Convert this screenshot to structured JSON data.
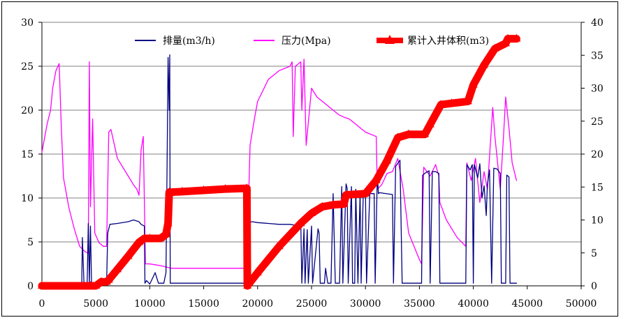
{
  "chart_data": {
    "type": "line",
    "x_axis": {
      "min": 0,
      "max": 50000,
      "ticks": [
        0,
        5000,
        10000,
        15000,
        20000,
        25000,
        30000,
        35000,
        40000,
        45000,
        50000
      ]
    },
    "y_left": {
      "min": 0,
      "max": 30,
      "ticks": [
        0,
        5,
        10,
        15,
        20,
        25,
        30
      ]
    },
    "y_right": {
      "min": 0,
      "max": 40,
      "ticks": [
        0,
        5,
        10,
        15,
        20,
        25,
        30,
        35,
        40
      ]
    },
    "grid": "horizontal",
    "legend_position": "top",
    "series": [
      {
        "name": "排量(m3/h)",
        "axis": "left",
        "color": "#000080",
        "style": "line",
        "points": [
          [
            0,
            0.3
          ],
          [
            3700,
            0.3
          ],
          [
            3750,
            5.5
          ],
          [
            3900,
            0.3
          ],
          [
            4200,
            0.3
          ],
          [
            4300,
            7.1
          ],
          [
            4400,
            0.3
          ],
          [
            4500,
            6.8
          ],
          [
            4600,
            0.3
          ],
          [
            6000,
            0.3
          ],
          [
            6100,
            6.0
          ],
          [
            6300,
            7.0
          ],
          [
            7000,
            7.1
          ],
          [
            8000,
            7.3
          ],
          [
            8500,
            7.5
          ],
          [
            9000,
            7.3
          ],
          [
            9200,
            7.0
          ],
          [
            9500,
            6.8
          ],
          [
            9550,
            0.3
          ],
          [
            9700,
            0.6
          ],
          [
            10000,
            0.2
          ],
          [
            10500,
            1.5
          ],
          [
            10800,
            0.3
          ],
          [
            11300,
            0.3
          ],
          [
            11500,
            1.5
          ],
          [
            11600,
            13
          ],
          [
            11700,
            26
          ],
          [
            11800,
            20
          ],
          [
            11850,
            26.3
          ],
          [
            11900,
            0.3
          ],
          [
            19000,
            0.3
          ],
          [
            19100,
            7.2
          ],
          [
            19500,
            7.3
          ],
          [
            20000,
            7.2
          ],
          [
            21000,
            7.1
          ],
          [
            22000,
            7.0
          ],
          [
            23000,
            7.0
          ],
          [
            23500,
            6.9
          ],
          [
            24000,
            7.2
          ],
          [
            24100,
            0.3
          ],
          [
            24300,
            6.5
          ],
          [
            24400,
            0.3
          ],
          [
            24600,
            6.4
          ],
          [
            24700,
            0.3
          ],
          [
            25000,
            6.8
          ],
          [
            25100,
            0.3
          ],
          [
            25600,
            6.5
          ],
          [
            25700,
            6.0
          ],
          [
            25800,
            0.3
          ],
          [
            26200,
            0.3
          ],
          [
            26300,
            2.0
          ],
          [
            26500,
            0.3
          ],
          [
            26800,
            0.3
          ],
          [
            27000,
            10.5
          ],
          [
            27200,
            0.3
          ],
          [
            27600,
            0.3
          ],
          [
            27800,
            11.3
          ],
          [
            27900,
            0.3
          ],
          [
            28200,
            11.6
          ],
          [
            28300,
            11.1
          ],
          [
            28400,
            0.3
          ],
          [
            28700,
            11.3
          ],
          [
            28800,
            0.3
          ],
          [
            29000,
            0.3
          ],
          [
            29100,
            11.0
          ],
          [
            29300,
            0.3
          ],
          [
            29500,
            10.6
          ],
          [
            29600,
            0.3
          ],
          [
            29800,
            10.8
          ],
          [
            30000,
            10.6
          ],
          [
            30100,
            0.3
          ],
          [
            30400,
            10.5
          ],
          [
            30800,
            10.5
          ],
          [
            30900,
            0.3
          ],
          [
            31100,
            12.9
          ],
          [
            31200,
            10.5
          ],
          [
            31300,
            10.6
          ],
          [
            32500,
            10.4
          ],
          [
            32600,
            0.3
          ],
          [
            32800,
            13.6
          ],
          [
            33200,
            14.3
          ],
          [
            33400,
            0.3
          ],
          [
            35200,
            0.3
          ],
          [
            35300,
            12.6
          ],
          [
            35600,
            12.9
          ],
          [
            35900,
            13.1
          ],
          [
            36000,
            0.3
          ],
          [
            36200,
            13.0
          ],
          [
            36500,
            13.0
          ],
          [
            36800,
            12.8
          ],
          [
            36900,
            0.3
          ],
          [
            39300,
            0.3
          ],
          [
            39400,
            13.8
          ],
          [
            39700,
            13.2
          ],
          [
            39900,
            13.8
          ],
          [
            40000,
            0.3
          ],
          [
            40100,
            13.8
          ],
          [
            40400,
            12.3
          ],
          [
            40600,
            13.9
          ],
          [
            40800,
            10.0
          ],
          [
            41000,
            11.4
          ],
          [
            41200,
            8.0
          ],
          [
            41300,
            11.5
          ],
          [
            41500,
            13.2
          ],
          [
            41700,
            0.3
          ],
          [
            41900,
            13.4
          ],
          [
            42200,
            13.3
          ],
          [
            42500,
            12.8
          ],
          [
            42600,
            0.3
          ],
          [
            43000,
            0.3
          ],
          [
            43100,
            12.6
          ],
          [
            43300,
            12.4
          ],
          [
            43400,
            0.3
          ],
          [
            44000,
            0.3
          ]
        ]
      },
      {
        "name": "压力(Mpa)",
        "axis": "left",
        "color": "#ff00ff",
        "style": "line",
        "points": [
          [
            0,
            15.2
          ],
          [
            300,
            17.2
          ],
          [
            500,
            18.5
          ],
          [
            800,
            20.0
          ],
          [
            1000,
            22.5
          ],
          [
            1300,
            24.5
          ],
          [
            1600,
            25.3
          ],
          [
            1800,
            18.0
          ],
          [
            2000,
            12.3
          ],
          [
            2500,
            8.9
          ],
          [
            3000,
            6.5
          ],
          [
            3500,
            4.5
          ],
          [
            4000,
            3.9
          ],
          [
            4300,
            3.7
          ],
          [
            4400,
            25.5
          ],
          [
            4500,
            9.0
          ],
          [
            4700,
            19.0
          ],
          [
            4900,
            6.0
          ],
          [
            5300,
            4.9
          ],
          [
            5700,
            4.5
          ],
          [
            6000,
            4.5
          ],
          [
            6200,
            17.5
          ],
          [
            6400,
            17.8
          ],
          [
            7000,
            14.5
          ],
          [
            8000,
            12.5
          ],
          [
            8500,
            11.5
          ],
          [
            8800,
            11.0
          ],
          [
            8950,
            10.5
          ],
          [
            9000,
            10.3
          ],
          [
            9200,
            15.5
          ],
          [
            9400,
            17.0
          ],
          [
            9600,
            2.5
          ],
          [
            10000,
            2.5
          ],
          [
            10500,
            2.4
          ],
          [
            11000,
            2.3
          ],
          [
            12000,
            2.0
          ],
          [
            19000,
            2.0
          ],
          [
            19100,
            7.0
          ],
          [
            19300,
            16.0
          ],
          [
            19700,
            19.0
          ],
          [
            20000,
            21.0
          ],
          [
            21000,
            23.5
          ],
          [
            22000,
            24.5
          ],
          [
            23000,
            25.0
          ],
          [
            23200,
            25.5
          ],
          [
            23300,
            17.0
          ],
          [
            23500,
            25.0
          ],
          [
            24000,
            25.5
          ],
          [
            24100,
            20.0
          ],
          [
            24300,
            25.8
          ],
          [
            24500,
            16.0
          ],
          [
            25000,
            22.5
          ],
          [
            25500,
            21.5
          ],
          [
            26000,
            21.0
          ],
          [
            26500,
            20.5
          ],
          [
            27000,
            20.0
          ],
          [
            27500,
            19.5
          ],
          [
            28000,
            19.2
          ],
          [
            28500,
            19.0
          ],
          [
            29000,
            18.5
          ],
          [
            29500,
            18.0
          ],
          [
            30000,
            17.5
          ],
          [
            31000,
            17.0
          ],
          [
            31100,
            11.0
          ],
          [
            31500,
            11.5
          ],
          [
            32000,
            12.8
          ],
          [
            32500,
            13.0
          ],
          [
            33000,
            14.5
          ],
          [
            33500,
            11.0
          ],
          [
            34000,
            6.0
          ],
          [
            35000,
            3.0
          ],
          [
            35200,
            2.5
          ],
          [
            35400,
            13.5
          ],
          [
            36000,
            12.5
          ],
          [
            36500,
            13.8
          ],
          [
            36800,
            12.5
          ],
          [
            36900,
            9.5
          ],
          [
            37500,
            7.5
          ],
          [
            38500,
            5.5
          ],
          [
            39300,
            4.5
          ],
          [
            39400,
            14.0
          ],
          [
            39800,
            12.0
          ],
          [
            40200,
            14.5
          ],
          [
            40600,
            9.5
          ],
          [
            41000,
            13.0
          ],
          [
            41300,
            11.0
          ],
          [
            41800,
            20.3
          ],
          [
            42000,
            17.0
          ],
          [
            42500,
            11.0
          ],
          [
            42800,
            17.0
          ],
          [
            43000,
            21.5
          ],
          [
            43300,
            18.0
          ],
          [
            43600,
            14.0
          ],
          [
            44000,
            12.0
          ]
        ]
      },
      {
        "name": "累计入井体积(m3)",
        "axis": "right",
        "color": "#ff0000",
        "style": "thick-line-with-triangle-markers",
        "points": [
          [
            0,
            0
          ],
          [
            4500,
            0
          ],
          [
            5000,
            0
          ],
          [
            5500,
            0.6
          ],
          [
            6000,
            0.6
          ],
          [
            6200,
            0.9
          ],
          [
            7000,
            2.5
          ],
          [
            8000,
            4.5
          ],
          [
            9000,
            6.6
          ],
          [
            9500,
            7.2
          ],
          [
            10000,
            7.2
          ],
          [
            11000,
            7.2
          ],
          [
            11500,
            7.8
          ],
          [
            11700,
            9.5
          ],
          [
            11800,
            14.2
          ],
          [
            13000,
            14.3
          ],
          [
            15000,
            14.5
          ],
          [
            17000,
            14.7
          ],
          [
            19000,
            14.8
          ],
          [
            19050,
            0
          ],
          [
            20000,
            2.0
          ],
          [
            22000,
            6.0
          ],
          [
            24000,
            9.5
          ],
          [
            25000,
            11.0
          ],
          [
            26000,
            12.0
          ],
          [
            27000,
            12.3
          ],
          [
            28000,
            12.4
          ],
          [
            28200,
            13.8
          ],
          [
            30000,
            14.0
          ],
          [
            31000,
            16.0
          ],
          [
            32000,
            19.0
          ],
          [
            33000,
            22.5
          ],
          [
            34000,
            23.0
          ],
          [
            35500,
            23.0
          ],
          [
            36000,
            24.5
          ],
          [
            37000,
            27.5
          ],
          [
            38000,
            27.7
          ],
          [
            39500,
            28.0
          ],
          [
            40000,
            30.5
          ],
          [
            41000,
            33.5
          ],
          [
            42000,
            36.0
          ],
          [
            43000,
            36.8
          ],
          [
            43200,
            37.5
          ],
          [
            44000,
            37.5
          ]
        ]
      }
    ]
  }
}
